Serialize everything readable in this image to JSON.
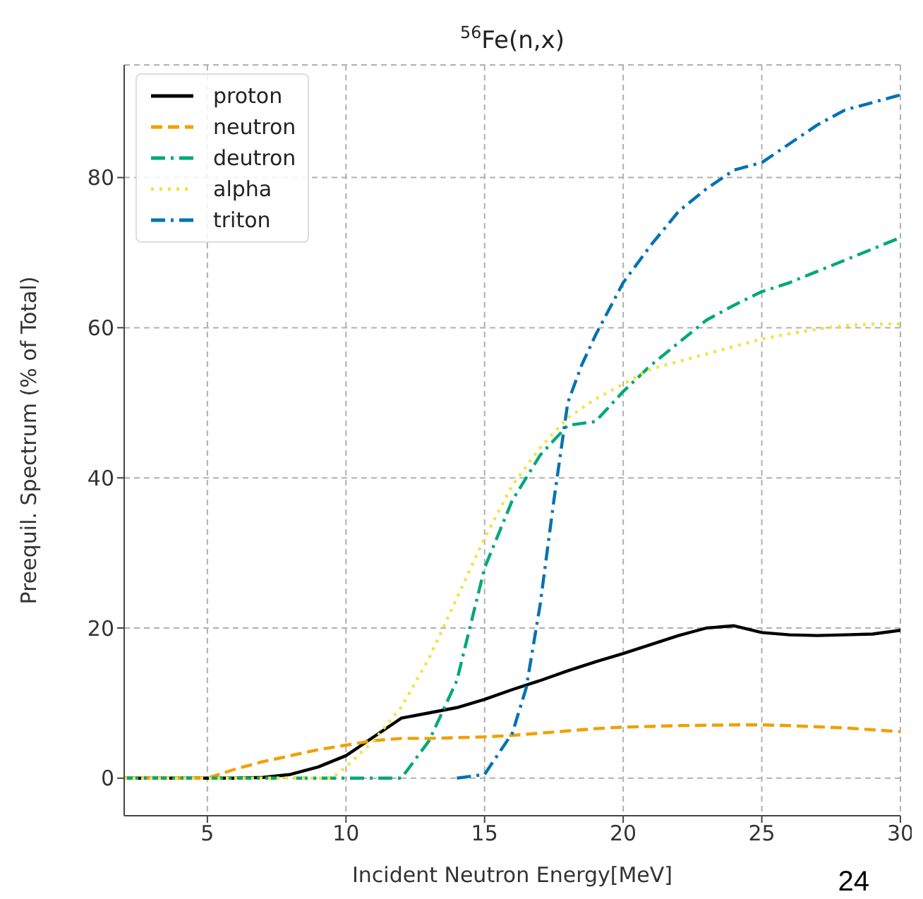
{
  "chart_data": {
    "type": "line",
    "title": "$^{56}$Fe(n,x)",
    "xlabel": "Incident Neutron Energy[MeV]",
    "ylabel": "Preequil. Spectrum (% of Total)",
    "xlim": [
      2,
      30
    ],
    "xticks": [
      5,
      10,
      15,
      20,
      25,
      30
    ],
    "ylim": [
      -5,
      95
    ],
    "yticks": [
      0,
      20,
      40,
      60,
      80
    ],
    "grid": true,
    "legend": "top left",
    "annotations": [
      "24"
    ],
    "series": [
      {
        "name": "proton",
        "color": "#000000",
        "line_style": "solid",
        "x": [
          2,
          3,
          4,
          5,
          6,
          7,
          8,
          9,
          10,
          11,
          12,
          13,
          14,
          15,
          16,
          17,
          18,
          19,
          20,
          21,
          22,
          23,
          24,
          25,
          26,
          27,
          28,
          29,
          30
        ],
        "values": [
          0,
          0,
          0,
          0,
          0,
          0.1,
          0.5,
          1.5,
          3,
          5.5,
          8,
          8.7,
          9.4,
          10.5,
          11.8,
          13,
          14.3,
          15.5,
          16.6,
          17.8,
          19,
          20,
          20.3,
          19.4,
          19.1,
          19,
          19.1,
          19.2,
          19.7
        ]
      },
      {
        "name": "neutron",
        "color": "#f0a000",
        "line_style": "dashed",
        "x": [
          2,
          3,
          4,
          5,
          6,
          7,
          8,
          9,
          10,
          11,
          12,
          13,
          14,
          15,
          16,
          17,
          18,
          19,
          20,
          22,
          24,
          25,
          26,
          28,
          30
        ],
        "values": [
          0,
          0,
          0,
          0,
          1.2,
          2.2,
          3,
          3.8,
          4.4,
          5,
          5.3,
          5.3,
          5.4,
          5.5,
          5.7,
          6,
          6.3,
          6.6,
          6.8,
          7,
          7.1,
          7.1,
          7,
          6.7,
          6.2
        ]
      },
      {
        "name": "deutron",
        "color": "#00a878",
        "line_style": "dashdot",
        "x": [
          2,
          5,
          8,
          10,
          12,
          13,
          14,
          15,
          16,
          17,
          18,
          19,
          20,
          21,
          22,
          23,
          24,
          25,
          26,
          27,
          28,
          29,
          30
        ],
        "values": [
          0,
          0,
          0,
          0,
          0,
          5,
          13,
          28,
          37,
          43,
          47,
          47.5,
          51.5,
          55,
          58,
          61,
          63,
          64.8,
          66,
          67.5,
          69,
          70.5,
          72
        ]
      },
      {
        "name": "alpha",
        "color": "#f0e442",
        "line_style": "dotted",
        "x": [
          2,
          5,
          8,
          9.5,
          10,
          11,
          12,
          13,
          14,
          15,
          16,
          17,
          18,
          19,
          20,
          21,
          22,
          23,
          24,
          25,
          26,
          27,
          28,
          29,
          30
        ],
        "values": [
          0,
          0,
          0,
          0,
          1.5,
          5,
          9.5,
          16,
          24,
          32,
          39,
          44,
          48,
          50.5,
          52.5,
          54.5,
          55.5,
          56.5,
          57.5,
          58.5,
          59.2,
          59.8,
          60.3,
          60.5,
          60.5
        ]
      },
      {
        "name": "triton",
        "color": "#0072b2",
        "line_style": "dashdot",
        "x": [
          14,
          15,
          16,
          16.5,
          17,
          17.5,
          18,
          18.5,
          19,
          20,
          21,
          22,
          23,
          24,
          25,
          26,
          27,
          28,
          29,
          30
        ],
        "values": [
          0,
          0.5,
          6,
          12,
          23,
          37,
          50,
          55,
          59,
          66,
          71,
          75.5,
          78.5,
          81,
          82,
          84.5,
          87,
          89,
          90,
          91
        ]
      }
    ]
  }
}
